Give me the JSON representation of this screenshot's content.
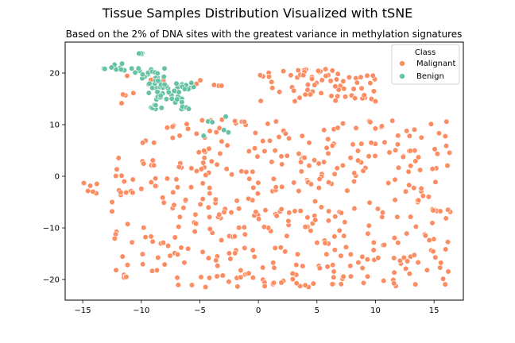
{
  "chart_data": {
    "type": "scatter",
    "title": "Tissue Samples Distribution Visualized with tSNE",
    "subtitle": "Based on the 2% of DNA sites with the greatest variance in methylation signatures",
    "xlabel": "",
    "ylabel": "",
    "xlim": [
      -16.5,
      17.5
    ],
    "ylim": [
      -24,
      26
    ],
    "xticks": [
      -15,
      -10,
      -5,
      0,
      5,
      10,
      15
    ],
    "yticks": [
      -20,
      -10,
      0,
      10,
      20
    ],
    "grid": false,
    "legend": {
      "title": "Class",
      "position": "top-right"
    },
    "series": [
      {
        "name": "Malignant",
        "color": "#fc8d62",
        "clusters": [
          {
            "x": [
              0.0,
              10.0
            ],
            "y": [
              14.5,
              21.0
            ],
            "n": 70
          },
          {
            "x": [
              -12.5,
              16.5
            ],
            "y": [
              -21.5,
              11.0
            ],
            "n": 460
          },
          {
            "x": [
              -15.0,
              -13.5
            ],
            "y": [
              -3.5,
              -0.5
            ],
            "n": 6
          },
          {
            "x": [
              -12.0,
              -10.5
            ],
            "y": [
              13.5,
              22.0
            ],
            "n": 5
          },
          {
            "x": [
              -5.5,
              -2.0
            ],
            "y": [
              17.5,
              19.0
            ],
            "n": 5
          },
          {
            "x": [
              -9.5,
              -8.0
            ],
            "y": [
              18.0,
              20.5
            ],
            "n": 3
          }
        ]
      },
      {
        "name": "Benign",
        "color": "#66c2a5",
        "clusters": [
          {
            "x": [
              -13.5,
              -10.0
            ],
            "y": [
              20.0,
              22.0
            ],
            "n": 16
          },
          {
            "x": [
              -10.0,
              -8.0
            ],
            "y": [
              17.0,
              21.0
            ],
            "n": 22
          },
          {
            "x": [
              -9.5,
              -5.5
            ],
            "y": [
              13.0,
              18.5
            ],
            "n": 50
          },
          {
            "x": [
              -11.0,
              -9.5
            ],
            "y": [
              23.5,
              24.0
            ],
            "n": 4
          },
          {
            "x": [
              -5.5,
              -2.5
            ],
            "y": [
              7.0,
              12.0
            ],
            "n": 6
          }
        ]
      }
    ]
  }
}
